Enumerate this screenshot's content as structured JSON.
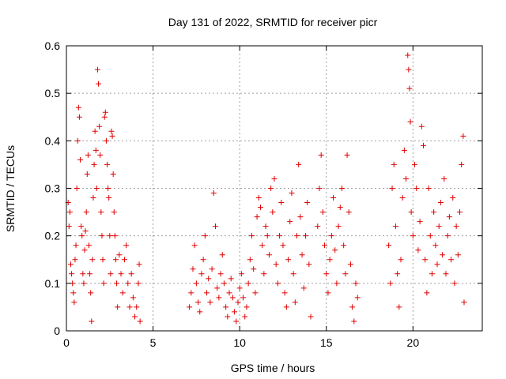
{
  "chart_data": {
    "type": "scatter",
    "title": "Day 131 of 2022, SRMTID for receiver picr",
    "xlabel": "GPS time / hours",
    "ylabel": "SRMTID / TECUs",
    "xlim": [
      0,
      24
    ],
    "ylim": [
      0,
      0.6
    ],
    "xticks": [
      "0",
      "5",
      "10",
      "15",
      "20"
    ],
    "xtick_values": [
      0,
      5,
      10,
      15,
      20
    ],
    "yticks": [
      "0",
      "0.1",
      "0.2",
      "0.3",
      "0.4",
      "0.5",
      "0.6"
    ],
    "ytick_values": [
      0,
      0.1,
      0.2,
      0.3,
      0.4,
      0.5,
      0.6
    ],
    "grid": true,
    "marker": "+",
    "colors": {
      "series": "#e00000",
      "grid": "#a0a0a0",
      "axis": "#000000"
    },
    "series": [
      {
        "name": "SRMTID",
        "points": [
          [
            0.1,
            0.27
          ],
          [
            0.15,
            0.22
          ],
          [
            0.2,
            0.25
          ],
          [
            0.25,
            0.14
          ],
          [
            0.3,
            0.12
          ],
          [
            0.35,
            0.1
          ],
          [
            0.4,
            0.08
          ],
          [
            0.45,
            0.06
          ],
          [
            0.5,
            0.15
          ],
          [
            0.55,
            0.18
          ],
          [
            0.6,
            0.3
          ],
          [
            0.65,
            0.4
          ],
          [
            0.7,
            0.47
          ],
          [
            0.75,
            0.45
          ],
          [
            0.8,
            0.36
          ],
          [
            0.85,
            0.22
          ],
          [
            0.9,
            0.2
          ],
          [
            0.95,
            0.12
          ],
          [
            1.0,
            0.1
          ],
          [
            1.05,
            0.17
          ],
          [
            1.1,
            0.21
          ],
          [
            1.15,
            0.25
          ],
          [
            1.2,
            0.33
          ],
          [
            1.25,
            0.37
          ],
          [
            1.3,
            0.18
          ],
          [
            1.35,
            0.12
          ],
          [
            1.4,
            0.08
          ],
          [
            1.45,
            0.02
          ],
          [
            1.5,
            0.15
          ],
          [
            1.55,
            0.28
          ],
          [
            1.6,
            0.35
          ],
          [
            1.65,
            0.42
          ],
          [
            1.7,
            0.38
          ],
          [
            1.75,
            0.3
          ],
          [
            1.8,
            0.55
          ],
          [
            1.85,
            0.52
          ],
          [
            1.9,
            0.43
          ],
          [
            1.95,
            0.37
          ],
          [
            2.0,
            0.25
          ],
          [
            2.05,
            0.2
          ],
          [
            2.1,
            0.15
          ],
          [
            2.15,
            0.1
          ],
          [
            2.2,
            0.45
          ],
          [
            2.25,
            0.46
          ],
          [
            2.3,
            0.4
          ],
          [
            2.35,
            0.35
          ],
          [
            2.4,
            0.3
          ],
          [
            2.45,
            0.28
          ],
          [
            2.5,
            0.2
          ],
          [
            2.55,
            0.12
          ],
          [
            2.6,
            0.42
          ],
          [
            2.65,
            0.41
          ],
          [
            2.7,
            0.33
          ],
          [
            2.75,
            0.25
          ],
          [
            2.8,
            0.2
          ],
          [
            2.85,
            0.15
          ],
          [
            2.9,
            0.1
          ],
          [
            2.95,
            0.05
          ],
          [
            3.05,
            0.16
          ],
          [
            3.15,
            0.12
          ],
          [
            3.25,
            0.08
          ],
          [
            3.35,
            0.15
          ],
          [
            3.45,
            0.18
          ],
          [
            3.55,
            0.1
          ],
          [
            3.65,
            0.05
          ],
          [
            3.75,
            0.12
          ],
          [
            3.85,
            0.07
          ],
          [
            3.95,
            0.03
          ],
          [
            4.05,
            0.05
          ],
          [
            4.15,
            0.1
          ],
          [
            4.2,
            0.14
          ],
          [
            4.25,
            0.02
          ],
          [
            7.1,
            0.05
          ],
          [
            7.2,
            0.08
          ],
          [
            7.3,
            0.13
          ],
          [
            7.4,
            0.18
          ],
          [
            7.5,
            0.1
          ],
          [
            7.6,
            0.06
          ],
          [
            7.7,
            0.04
          ],
          [
            7.8,
            0.12
          ],
          [
            7.9,
            0.15
          ],
          [
            8.0,
            0.2
          ],
          [
            8.1,
            0.08
          ],
          [
            8.2,
            0.11
          ],
          [
            8.3,
            0.06
          ],
          [
            8.4,
            0.13
          ],
          [
            8.5,
            0.29
          ],
          [
            8.6,
            0.22
          ],
          [
            8.7,
            0.09
          ],
          [
            8.8,
            0.07
          ],
          [
            8.9,
            0.12
          ],
          [
            9.0,
            0.16
          ],
          [
            9.1,
            0.1
          ],
          [
            9.2,
            0.05
          ],
          [
            9.3,
            0.03
          ],
          [
            9.4,
            0.08
          ],
          [
            9.5,
            0.11
          ],
          [
            9.6,
            0.07
          ],
          [
            9.7,
            0.04
          ],
          [
            9.8,
            0.02
          ],
          [
            9.9,
            0.06
          ],
          [
            10.0,
            0.09
          ],
          [
            10.1,
            0.12
          ],
          [
            10.2,
            0.07
          ],
          [
            10.3,
            0.03
          ],
          [
            10.4,
            0.05
          ],
          [
            10.5,
            0.1
          ],
          [
            10.6,
            0.15
          ],
          [
            10.7,
            0.2
          ],
          [
            10.8,
            0.13
          ],
          [
            10.9,
            0.08
          ],
          [
            11.0,
            0.24
          ],
          [
            11.1,
            0.28
          ],
          [
            11.2,
            0.26
          ],
          [
            11.3,
            0.18
          ],
          [
            11.4,
            0.12
          ],
          [
            11.5,
            0.22
          ],
          [
            11.6,
            0.2
          ],
          [
            11.7,
            0.16
          ],
          [
            11.8,
            0.3
          ],
          [
            11.9,
            0.25
          ],
          [
            12.0,
            0.32
          ],
          [
            12.1,
            0.14
          ],
          [
            12.2,
            0.1
          ],
          [
            12.3,
            0.2
          ],
          [
            12.4,
            0.27
          ],
          [
            12.5,
            0.18
          ],
          [
            12.6,
            0.08
          ],
          [
            12.7,
            0.05
          ],
          [
            12.8,
            0.15
          ],
          [
            12.9,
            0.23
          ],
          [
            13.0,
            0.29
          ],
          [
            13.1,
            0.12
          ],
          [
            13.2,
            0.06
          ],
          [
            13.3,
            0.2
          ],
          [
            13.4,
            0.35
          ],
          [
            13.5,
            0.24
          ],
          [
            13.6,
            0.16
          ],
          [
            13.7,
            0.09
          ],
          [
            13.8,
            0.2
          ],
          [
            13.9,
            0.27
          ],
          [
            14.0,
            0.14
          ],
          [
            14.1,
            0.03
          ],
          [
            14.5,
            0.22
          ],
          [
            14.6,
            0.3
          ],
          [
            14.7,
            0.37
          ],
          [
            14.8,
            0.25
          ],
          [
            14.9,
            0.18
          ],
          [
            15.0,
            0.12
          ],
          [
            15.1,
            0.08
          ],
          [
            15.2,
            0.15
          ],
          [
            15.3,
            0.2
          ],
          [
            15.4,
            0.28
          ],
          [
            15.5,
            0.17
          ],
          [
            15.6,
            0.1
          ],
          [
            15.7,
            0.22
          ],
          [
            15.8,
            0.26
          ],
          [
            15.9,
            0.3
          ],
          [
            16.0,
            0.18
          ],
          [
            16.1,
            0.12
          ],
          [
            16.2,
            0.37
          ],
          [
            16.3,
            0.25
          ],
          [
            16.4,
            0.14
          ],
          [
            16.5,
            0.05
          ],
          [
            16.6,
            0.02
          ],
          [
            16.7,
            0.1
          ],
          [
            16.8,
            0.07
          ],
          [
            18.6,
            0.18
          ],
          [
            18.7,
            0.1
          ],
          [
            18.8,
            0.3
          ],
          [
            18.9,
            0.35
          ],
          [
            19.0,
            0.22
          ],
          [
            19.1,
            0.12
          ],
          [
            19.2,
            0.05
          ],
          [
            19.3,
            0.15
          ],
          [
            19.4,
            0.28
          ],
          [
            19.5,
            0.38
          ],
          [
            19.6,
            0.32
          ],
          [
            19.7,
            0.58
          ],
          [
            19.75,
            0.55
          ],
          [
            19.8,
            0.51
          ],
          [
            19.85,
            0.44
          ],
          [
            19.9,
            0.25
          ],
          [
            20.0,
            0.2
          ],
          [
            20.1,
            0.35
          ],
          [
            20.2,
            0.3
          ],
          [
            20.3,
            0.17
          ],
          [
            20.4,
            0.23
          ],
          [
            20.5,
            0.43
          ],
          [
            20.6,
            0.39
          ],
          [
            20.7,
            0.15
          ],
          [
            20.8,
            0.08
          ],
          [
            20.9,
            0.3
          ],
          [
            21.0,
            0.2
          ],
          [
            21.1,
            0.12
          ],
          [
            21.2,
            0.25
          ],
          [
            21.3,
            0.18
          ],
          [
            21.4,
            0.14
          ],
          [
            21.5,
            0.22
          ],
          [
            21.6,
            0.27
          ],
          [
            21.7,
            0.16
          ],
          [
            21.8,
            0.32
          ],
          [
            21.9,
            0.12
          ],
          [
            22.0,
            0.2
          ],
          [
            22.1,
            0.24
          ],
          [
            22.2,
            0.15
          ],
          [
            22.3,
            0.28
          ],
          [
            22.4,
            0.1
          ],
          [
            22.5,
            0.22
          ],
          [
            22.6,
            0.16
          ],
          [
            22.7,
            0.25
          ],
          [
            22.8,
            0.35
          ],
          [
            22.9,
            0.41
          ],
          [
            22.95,
            0.06
          ]
        ]
      }
    ]
  }
}
